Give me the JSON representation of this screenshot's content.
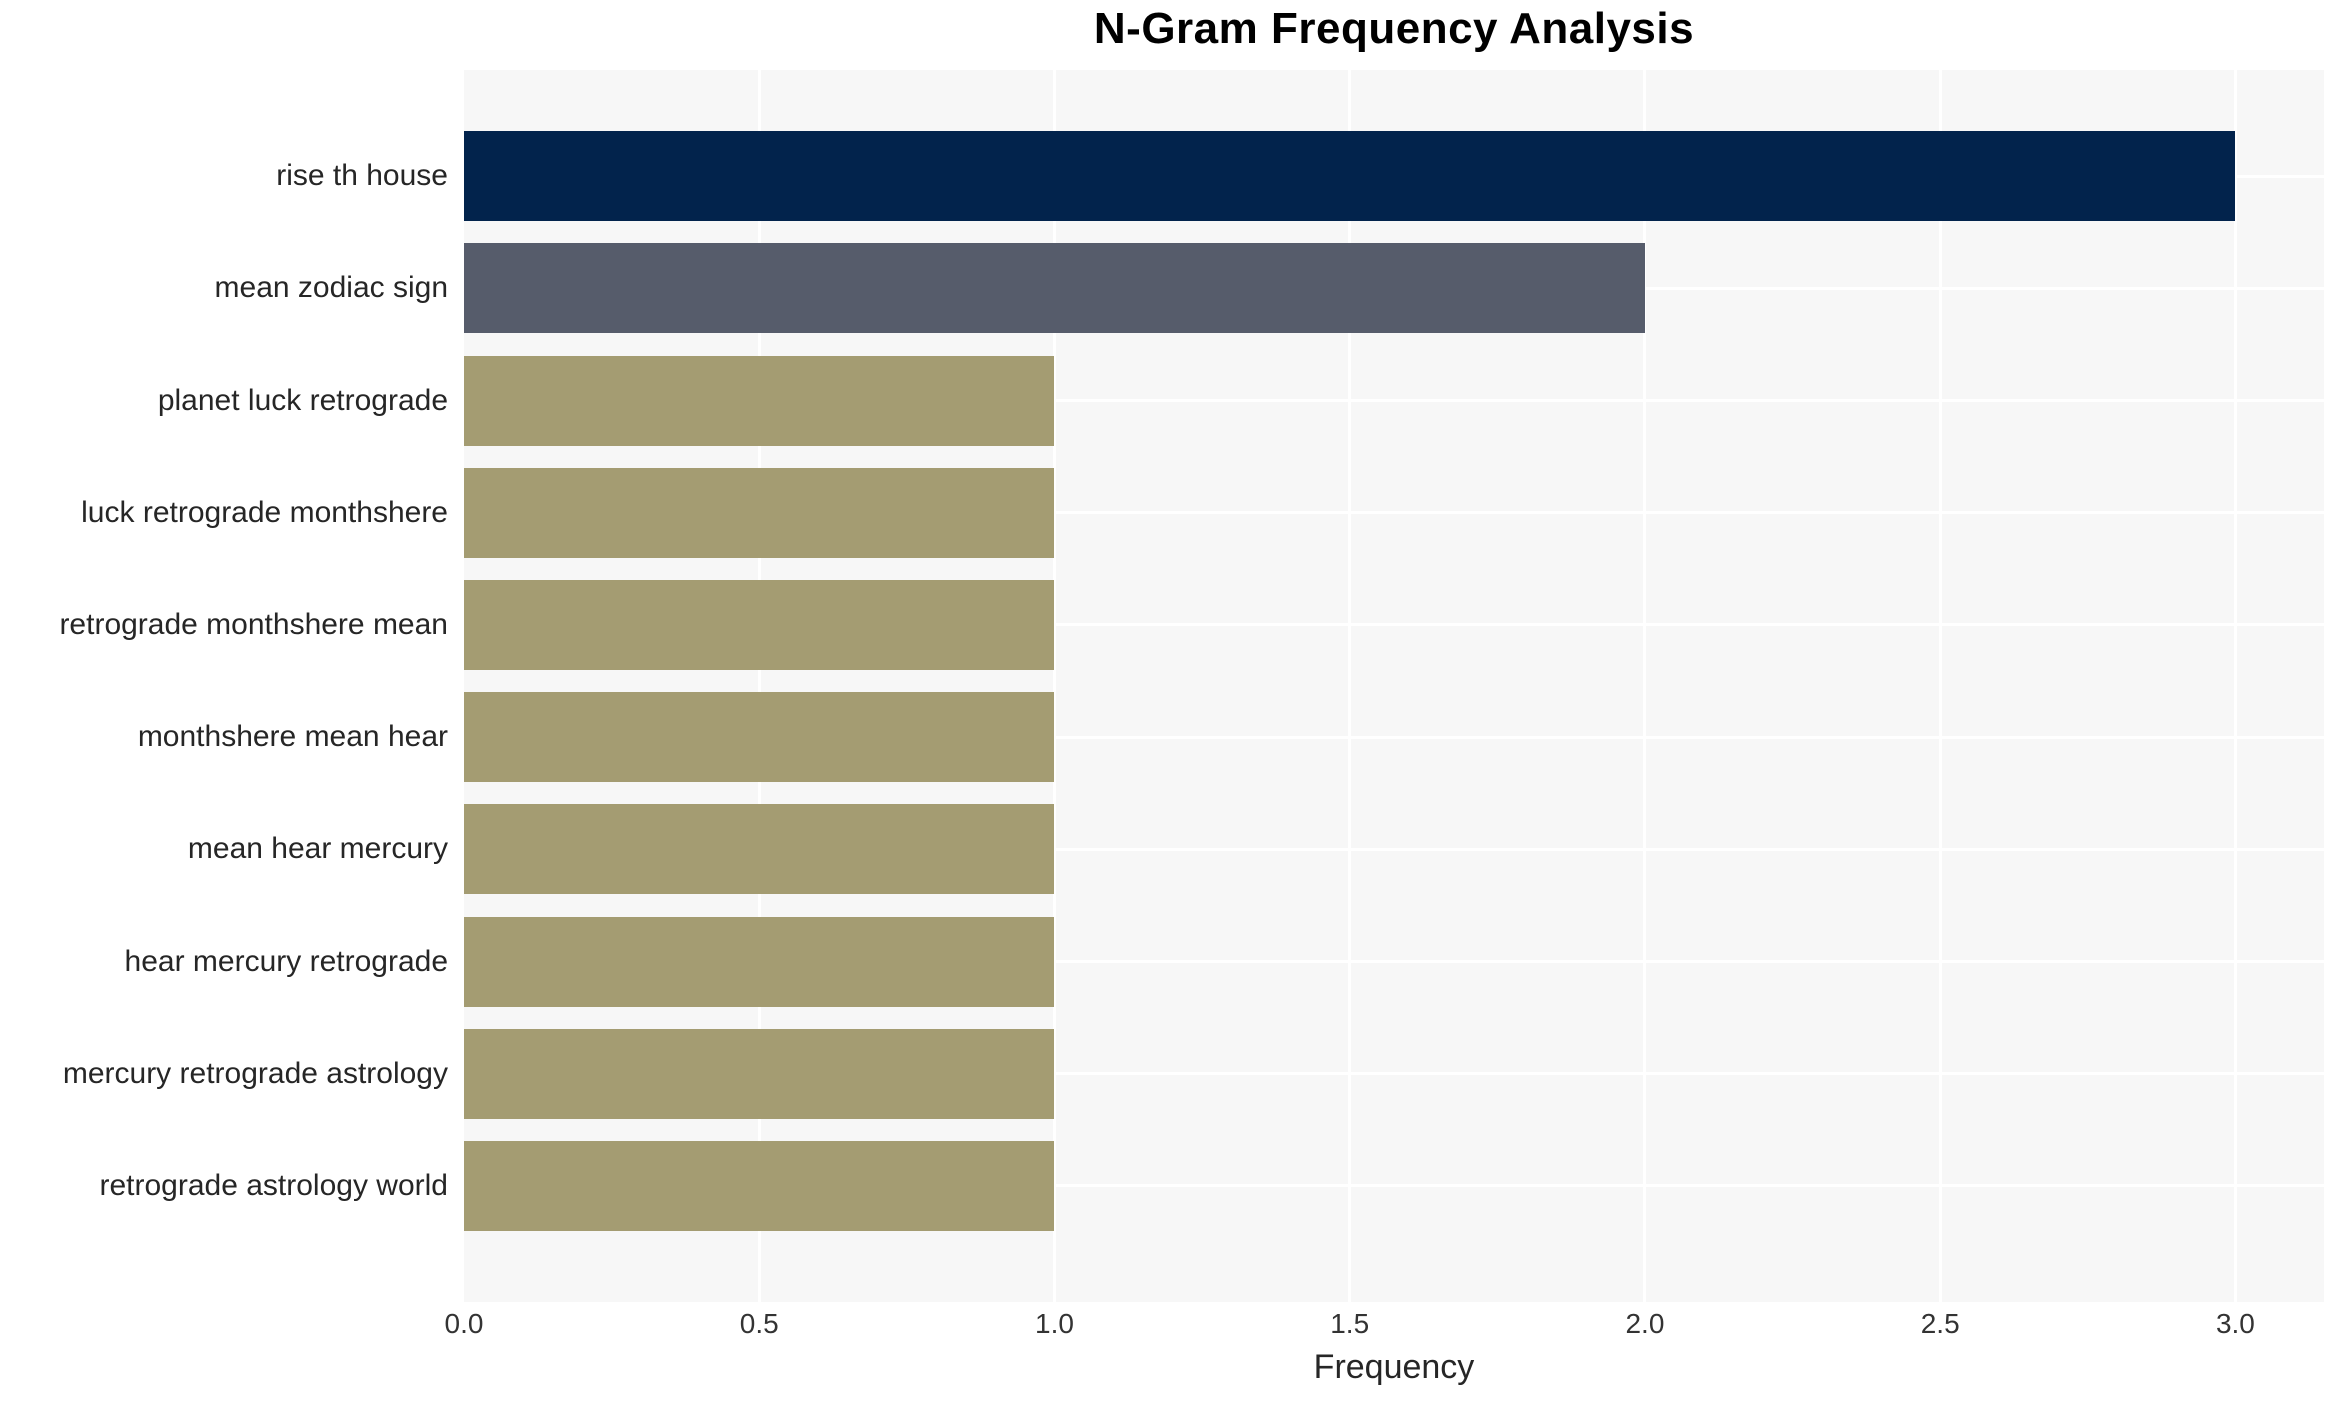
{
  "chart_data": {
    "type": "bar",
    "orientation": "horizontal",
    "title": "N-Gram Frequency Analysis",
    "xlabel": "Frequency",
    "ylabel": "",
    "categories": [
      "rise th house",
      "mean zodiac sign",
      "planet luck retrograde",
      "luck retrograde monthshere",
      "retrograde monthshere mean",
      "monthshere mean hear",
      "mean hear mercury",
      "hear mercury retrograde",
      "mercury retrograde astrology",
      "retrograde astrology world"
    ],
    "values": [
      3,
      2,
      1,
      1,
      1,
      1,
      1,
      1,
      1,
      1
    ],
    "bar_colors": [
      "#02234C",
      "#565C6B",
      "#A49C72",
      "#A49C72",
      "#A49C72",
      "#A49C72",
      "#A49C72",
      "#A49C72",
      "#A49C72",
      "#A49C72"
    ],
    "xticks": [
      0,
      0.5,
      1,
      1.5,
      2,
      2.5,
      3
    ],
    "xtick_labels": [
      "0.0",
      "0.5",
      "1.0",
      "1.5",
      "2.0",
      "2.5",
      "3.0"
    ],
    "xlim": [
      0,
      3.15
    ],
    "grid": {
      "vertical_major": true,
      "horizontal_category_lines": true,
      "color": "#FFFFFF"
    },
    "legend": null,
    "colors": {
      "panel_background": "#F7F7F7",
      "page_background": "#FFFFFF",
      "title_text": "#000000",
      "axis_text": "#333333",
      "label_text": "#262626"
    }
  }
}
